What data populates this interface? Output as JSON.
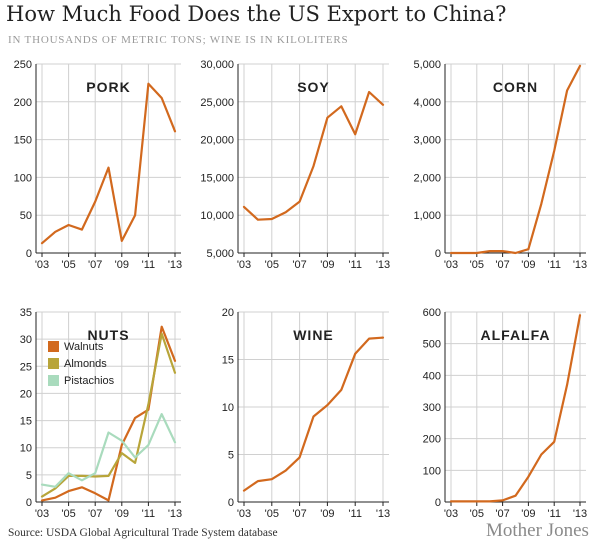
{
  "title": "How Much Food Does the US Export to China?",
  "subtitle": "IN THOUSANDS OF METRIC TONS; WINE IS IN KILOLITERS",
  "source": "Source: USDA Global Agricultural Trade System database",
  "brand": "Mother Jones",
  "colors": {
    "walnuts": "#d2691e",
    "almonds": "#b8a53a",
    "pistachios": "#a9dbbd",
    "gridline": "#d0d0d0"
  },
  "chart_data": [
    {
      "type": "line",
      "title": "PORK",
      "x": [
        2003,
        2004,
        2005,
        2006,
        2007,
        2008,
        2009,
        2010,
        2011,
        2012,
        2013
      ],
      "xticks": [
        2003,
        2005,
        2007,
        2009,
        2011,
        2013
      ],
      "xtick_labels": [
        "'03",
        "'05",
        "'07",
        "'09",
        "'11",
        "'13"
      ],
      "ylim": [
        0,
        250
      ],
      "yticks": [
        0,
        50,
        100,
        150,
        200,
        250
      ],
      "ytick_labels": [
        "0",
        "50",
        "100",
        "150",
        "200",
        "250"
      ],
      "grid": true,
      "series": [
        {
          "color": "#d2691e",
          "values": [
            13,
            28,
            37,
            31,
            68,
            113,
            16,
            50,
            224,
            205,
            161
          ]
        }
      ]
    },
    {
      "type": "line",
      "title": "SOY",
      "x": [
        2003,
        2004,
        2005,
        2006,
        2007,
        2008,
        2009,
        2010,
        2011,
        2012,
        2013
      ],
      "xticks": [
        2003,
        2005,
        2007,
        2009,
        2011,
        2013
      ],
      "xtick_labels": [
        "'03",
        "'05",
        "'07",
        "'09",
        "'11",
        "'13"
      ],
      "ylim": [
        5000,
        30000
      ],
      "yticks": [
        5000,
        10000,
        15000,
        20000,
        25000,
        30000
      ],
      "ytick_labels": [
        "5,000",
        "10,000",
        "15,000",
        "20,000",
        "25,000",
        "30,000"
      ],
      "grid": true,
      "series": [
        {
          "color": "#d2691e",
          "values": [
            11100,
            9400,
            9500,
            10400,
            11800,
            16500,
            22900,
            24400,
            20700,
            26300,
            24600
          ]
        }
      ]
    },
    {
      "type": "line",
      "title": "CORN",
      "x": [
        2003,
        2004,
        2005,
        2006,
        2007,
        2008,
        2009,
        2010,
        2011,
        2012,
        2013
      ],
      "xticks": [
        2003,
        2005,
        2007,
        2009,
        2011,
        2013
      ],
      "xtick_labels": [
        "'03",
        "'05",
        "'07",
        "'09",
        "'11",
        "'13"
      ],
      "ylim": [
        0,
        5000
      ],
      "yticks": [
        0,
        1000,
        2000,
        3000,
        4000,
        5000
      ],
      "ytick_labels": [
        "0",
        "1,000",
        "2,000",
        "3,000",
        "4,000",
        "5,000"
      ],
      "grid": true,
      "series": [
        {
          "color": "#d2691e",
          "values": [
            0,
            0,
            0,
            50,
            50,
            0,
            100,
            1300,
            2700,
            4300,
            4950
          ]
        }
      ]
    },
    {
      "type": "line",
      "title": "NUTS",
      "x": [
        2003,
        2004,
        2005,
        2006,
        2007,
        2008,
        2009,
        2010,
        2011,
        2012,
        2013
      ],
      "xticks": [
        2003,
        2005,
        2007,
        2009,
        2011,
        2013
      ],
      "xtick_labels": [
        "'03",
        "'05",
        "'07",
        "'09",
        "'11",
        "'13"
      ],
      "ylim": [
        0,
        35
      ],
      "yticks": [
        0,
        5,
        10,
        15,
        20,
        25,
        30,
        35
      ],
      "ytick_labels": [
        "0",
        "5",
        "10",
        "15",
        "20",
        "25",
        "30",
        "35"
      ],
      "grid": true,
      "legend": "top-left",
      "series": [
        {
          "name": "Walnuts",
          "color": "#d2691e",
          "values": [
            0.3,
            0.8,
            2.0,
            2.7,
            1.6,
            0.3,
            10.5,
            15.5,
            17.0,
            32.3,
            26.0
          ]
        },
        {
          "name": "Almonds",
          "color": "#b8a53a",
          "values": [
            1.0,
            2.5,
            4.8,
            4.8,
            4.7,
            4.8,
            9.0,
            7.2,
            18.0,
            31.0,
            23.8
          ]
        },
        {
          "name": "Pistachios",
          "color": "#a9dbbd",
          "values": [
            3.2,
            2.8,
            5.3,
            4.0,
            5.3,
            12.8,
            11.3,
            8.2,
            10.5,
            16.2,
            11.0
          ]
        }
      ]
    },
    {
      "type": "line",
      "title": "WINE",
      "x": [
        2003,
        2004,
        2005,
        2006,
        2007,
        2008,
        2009,
        2010,
        2011,
        2012,
        2013
      ],
      "xticks": [
        2003,
        2005,
        2007,
        2009,
        2011,
        2013
      ],
      "xtick_labels": [
        "'03",
        "'05",
        "'07",
        "'09",
        "'11",
        "'13"
      ],
      "ylim": [
        0,
        20
      ],
      "yticks": [
        0,
        5,
        10,
        15,
        20
      ],
      "ytick_labels": [
        "0",
        "5",
        "10",
        "15",
        "20"
      ],
      "grid": true,
      "series": [
        {
          "color": "#d2691e",
          "values": [
            1.2,
            2.2,
            2.4,
            3.3,
            4.7,
            9.0,
            10.2,
            11.8,
            15.6,
            17.2,
            17.3
          ]
        }
      ]
    },
    {
      "type": "line",
      "title": "ALFALFA",
      "x": [
        2003,
        2004,
        2005,
        2006,
        2007,
        2008,
        2009,
        2010,
        2011,
        2012,
        2013
      ],
      "xticks": [
        2003,
        2005,
        2007,
        2009,
        2011,
        2013
      ],
      "xtick_labels": [
        "'03",
        "'05",
        "'07",
        "'09",
        "'11",
        "'13"
      ],
      "ylim": [
        0,
        600
      ],
      "yticks": [
        0,
        100,
        200,
        300,
        400,
        500,
        600
      ],
      "ytick_labels": [
        "0",
        "100",
        "200",
        "300",
        "400",
        "500",
        "600"
      ],
      "grid": true,
      "series": [
        {
          "color": "#d2691e",
          "values": [
            2,
            2,
            2,
            2,
            5,
            20,
            80,
            150,
            190,
            370,
            590
          ]
        }
      ]
    }
  ]
}
